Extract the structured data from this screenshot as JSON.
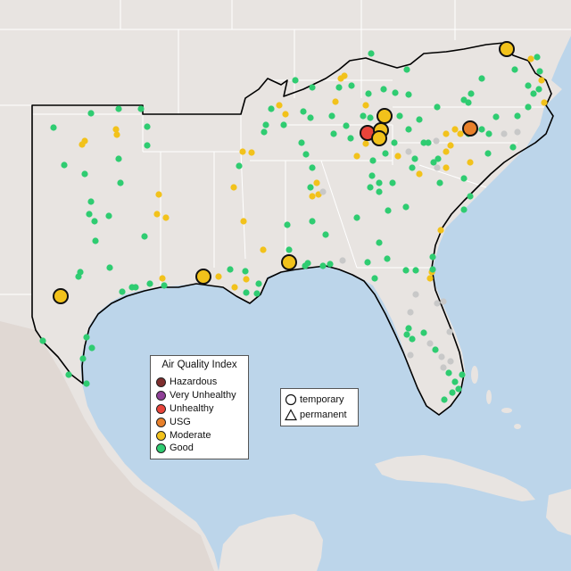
{
  "colors": {
    "ocean": "#bcd5ea",
    "land": "#e8e4e1",
    "land_hills": "#ddd5cf",
    "border": "#ffffff",
    "region_outline": "#000000",
    "hazardous": "#7e2e2e",
    "very_unhealthy": "#8f3f97",
    "unhealthy": "#e8443a",
    "usg": "#e8802a",
    "moderate": "#f2c21b",
    "good": "#2fcc71",
    "no_data": "#c8c8c8"
  },
  "legend": {
    "title": "Air Quality Index",
    "items": [
      {
        "label": "Hazardous",
        "color": "#7e2e2e"
      },
      {
        "label": "Very Unhealthy",
        "color": "#8f3f97"
      },
      {
        "label": "Unhealthy",
        "color": "#e8443a"
      },
      {
        "label": "USG",
        "color": "#e8802a"
      },
      {
        "label": "Moderate",
        "color": "#f2c21b"
      },
      {
        "label": "Good",
        "color": "#2fcc71"
      }
    ]
  },
  "shape_legend": {
    "items": [
      {
        "label": "temporary",
        "shape": "circle"
      },
      {
        "label": "permanent",
        "shape": "triangle"
      }
    ]
  }
}
